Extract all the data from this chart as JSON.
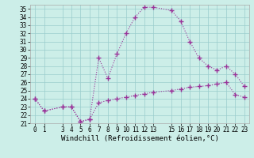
{
  "xlabel": "Windchill (Refroidissement éolien,°C)",
  "background_color": "#cceee8",
  "line_color": "#993399",
  "grid_color": "#99cccc",
  "xlim": [
    -0.5,
    23.5
  ],
  "ylim": [
    21,
    35.5
  ],
  "yticks": [
    21,
    22,
    23,
    24,
    25,
    26,
    27,
    28,
    29,
    30,
    31,
    32,
    33,
    34,
    35
  ],
  "xticks": [
    0,
    1,
    3,
    4,
    5,
    6,
    7,
    8,
    9,
    10,
    11,
    12,
    13,
    15,
    16,
    17,
    18,
    19,
    20,
    21,
    22,
    23
  ],
  "temp_x": [
    0,
    1,
    3,
    4,
    5,
    6,
    7,
    8,
    9,
    10,
    11,
    12,
    13,
    15,
    16,
    17,
    18,
    19,
    20,
    21,
    22,
    23
  ],
  "temp_y": [
    24,
    22.5,
    23,
    23,
    21.2,
    21.5,
    29,
    26.5,
    29.5,
    32,
    34,
    35.2,
    35.2,
    34.8,
    33.5,
    31,
    29,
    28,
    27.5,
    28,
    27,
    25.5
  ],
  "wind_x": [
    0,
    1,
    3,
    4,
    5,
    6,
    7,
    8,
    9,
    10,
    11,
    12,
    13,
    15,
    16,
    17,
    18,
    19,
    20,
    21,
    22,
    23
  ],
  "wind_y": [
    24,
    22.5,
    23,
    23,
    21.2,
    21.5,
    23.5,
    23.8,
    24.0,
    24.2,
    24.4,
    24.6,
    24.8,
    25.0,
    25.2,
    25.4,
    25.5,
    25.6,
    25.8,
    26.0,
    24.5,
    24.2
  ],
  "marker": "+",
  "markersize": 4,
  "linewidth": 0.8,
  "tick_fontsize": 5.5,
  "xlabel_fontsize": 6.5
}
